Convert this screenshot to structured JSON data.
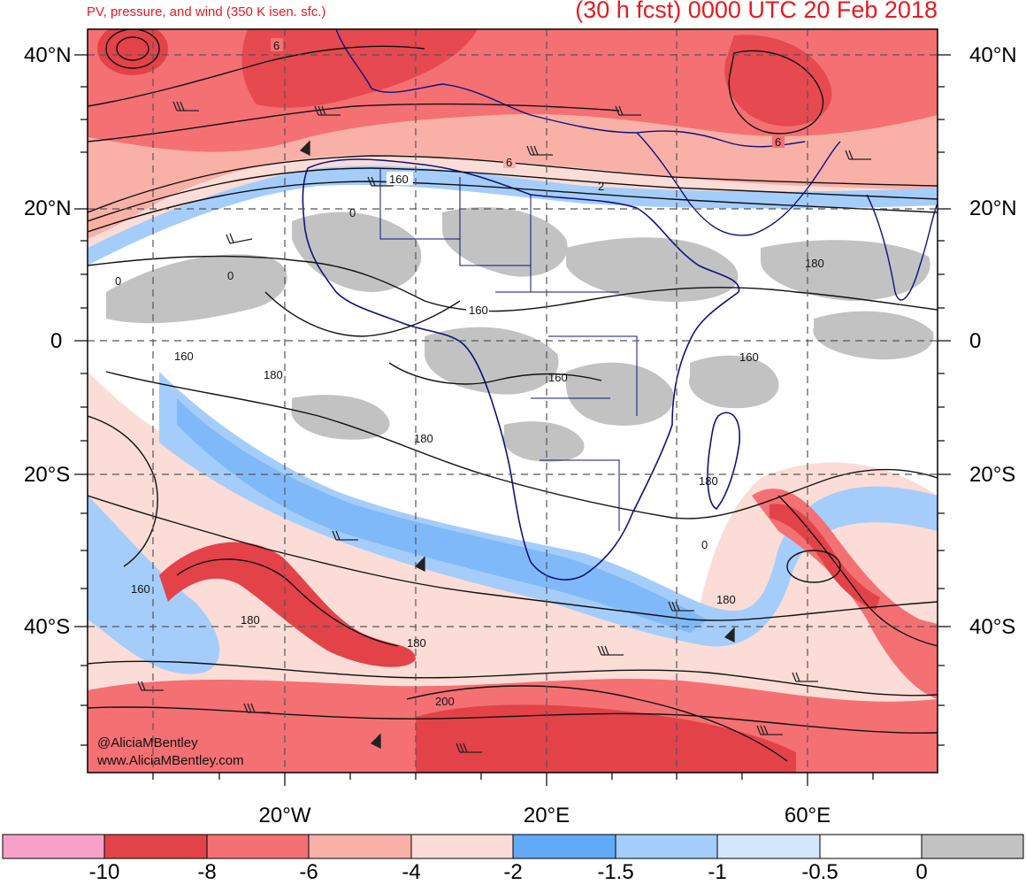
{
  "header": {
    "subtitle": "PV, pressure, and wind (350 K isen. sfc.)",
    "forecast_label": "(30 h fcst) 0000 UTC 20 Feb 2018"
  },
  "axes": {
    "lat_labels": [
      "40°N",
      "20°N",
      "0",
      "20°S",
      "40°S"
    ],
    "lon_labels": [
      "20°W",
      "20°E",
      "60°E"
    ]
  },
  "contour_labels": [
    "6",
    "6",
    "6",
    "160",
    "0",
    "0",
    "0",
    "160",
    "160",
    "180",
    "160",
    "160",
    "180",
    "180",
    "180",
    "160",
    "180",
    "180",
    "180",
    "200",
    "2",
    "0"
  ],
  "colorbar": {
    "colors": [
      "#f7a1c8",
      "#e34249",
      "#f47073",
      "#f9b0a6",
      "#fcdcd6",
      "#62a9f8",
      "#a4cdfb",
      "#d4e6fc",
      "#ffffff",
      "#c2c2c2"
    ],
    "labels": [
      "-10",
      "-8",
      "-6",
      "-4",
      "-2",
      "-1.5",
      "-1",
      "-0.5",
      "0"
    ]
  },
  "credits": {
    "handle": "@AliciaMBentley",
    "website": "www.AliciaMBentley.com"
  }
}
